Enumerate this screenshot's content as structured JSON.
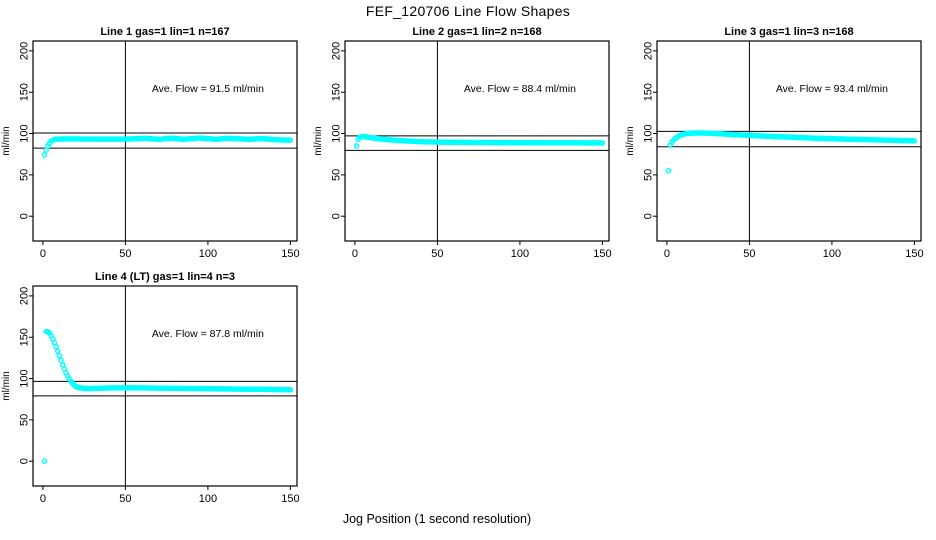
{
  "figure": {
    "title": "FEF_120706  Line Flow Shapes",
    "xlabel": "Jog Position (1 second resolution)"
  },
  "colors": {
    "points": "#00ffff",
    "axis": "#000000",
    "background": "#ffffff"
  },
  "chart_data": [
    {
      "type": "scatter",
      "title": "Line 1 gas=1 lin=1 n=167",
      "annotation": "Ave. Flow =  91.5  ml/min",
      "ave_flow_ml_min": 91.5,
      "n": 167,
      "ylabel": "ml/min",
      "xticks": [
        0,
        50,
        100,
        150
      ],
      "yticks": [
        0,
        50,
        100,
        150,
        200
      ],
      "xlim": [
        -6,
        154
      ],
      "ylim": [
        -30,
        212
      ],
      "vline": 50,
      "hlines": [
        100.7,
        82.4
      ],
      "annotation_xy": [
        100,
        150
      ],
      "grid": false,
      "points": {
        "x": [
          1,
          2,
          3,
          4,
          5,
          6,
          8,
          10,
          15,
          20,
          30,
          40,
          50,
          62,
          70,
          78,
          85,
          95,
          105,
          112,
          125,
          133,
          140,
          150
        ],
        "y": [
          74,
          80,
          85,
          88,
          91,
          92,
          93.2,
          93.4,
          93.5,
          93.5,
          93.3,
          93.2,
          93.2,
          94.3,
          93.0,
          94.4,
          93.1,
          94.6,
          93.0,
          94.3,
          93.0,
          94.0,
          92.6,
          92.0
        ]
      }
    },
    {
      "type": "scatter",
      "title": "Line 2 gas=1 lin=2 n=168",
      "annotation": "Ave. Flow =  88.4  ml/min",
      "ave_flow_ml_min": 88.4,
      "n": 168,
      "ylabel": "ml/min",
      "xticks": [
        0,
        50,
        100,
        150
      ],
      "yticks": [
        0,
        50,
        100,
        150,
        200
      ],
      "xlim": [
        -6,
        154
      ],
      "ylim": [
        -30,
        212
      ],
      "vline": 50,
      "hlines": [
        97.2,
        79.6
      ],
      "annotation_xy": [
        100,
        150
      ],
      "grid": false,
      "points": {
        "x": [
          1,
          2,
          3,
          4,
          6,
          8,
          10,
          12,
          15,
          18,
          22,
          26,
          30,
          35,
          40,
          50,
          60,
          75,
          90,
          110,
          130,
          150
        ],
        "y": [
          85,
          93,
          95.5,
          96.2,
          96.2,
          95.6,
          95.0,
          94.4,
          93.6,
          93.0,
          92.3,
          91.7,
          91.2,
          90.7,
          90.2,
          89.7,
          89.4,
          89.2,
          89.0,
          88.9,
          88.8,
          88.6
        ]
      }
    },
    {
      "type": "scatter",
      "title": "Line 3 gas=1 lin=3 n=168",
      "annotation": "Ave. Flow =  93.4  ml/min",
      "ave_flow_ml_min": 93.4,
      "n": 168,
      "ylabel": "ml/min",
      "xticks": [
        0,
        50,
        100,
        150
      ],
      "yticks": [
        0,
        50,
        100,
        150,
        200
      ],
      "xlim": [
        -6,
        154
      ],
      "ylim": [
        -30,
        212
      ],
      "vline": 50,
      "hlines": [
        102.7,
        84.1
      ],
      "annotation_xy": [
        100,
        150
      ],
      "grid": false,
      "points": {
        "x": [
          1,
          2,
          3,
          4,
          5,
          6,
          7,
          8,
          9,
          10,
          12,
          14,
          16,
          18,
          20,
          25,
          30,
          35,
          40,
          50,
          60,
          70,
          80,
          90,
          100,
          110,
          120,
          130,
          140,
          150
        ],
        "y": [
          55,
          86,
          89.5,
          92,
          94,
          95.5,
          96.8,
          97.8,
          98.6,
          99.2,
          100,
          100.4,
          100.6,
          100.7,
          100.7,
          100.4,
          100,
          99.4,
          98.8,
          97.8,
          96.8,
          96,
          95.2,
          94.4,
          93.8,
          93.2,
          92.7,
          92.2,
          91.7,
          91.2
        ]
      }
    },
    {
      "type": "scatter",
      "title": "Line 4 (LT) gas=1 lin=4 n=3",
      "annotation": "Ave. Flow =  87.8  ml/min",
      "ave_flow_ml_min": 87.8,
      "n": 3,
      "ylabel": "ml/min",
      "xticks": [
        0,
        50,
        100,
        150
      ],
      "yticks": [
        0,
        50,
        100,
        150,
        200
      ],
      "xlim": [
        -6,
        154
      ],
      "ylim": [
        -30,
        212
      ],
      "vline": 50,
      "hlines": [
        96.6,
        79.0
      ],
      "annotation_xy": [
        100,
        150
      ],
      "grid": false,
      "points": {
        "x": [
          1,
          2,
          3,
          4,
          5,
          6,
          7,
          8,
          9,
          10,
          11,
          12,
          13,
          14,
          15,
          16,
          17,
          18,
          19,
          20,
          22,
          24,
          26,
          30,
          35,
          40,
          50,
          60,
          70,
          80,
          90,
          100,
          110,
          120,
          130,
          140,
          150
        ],
        "y": [
          0,
          157,
          156.5,
          155,
          152,
          148,
          143.5,
          138.5,
          133,
          127.5,
          122,
          116.5,
          111.5,
          107,
          103,
          99.5,
          96.5,
          94,
          92,
          90.5,
          89,
          88.3,
          88,
          88,
          88.3,
          88.6,
          88.8,
          88.7,
          88.4,
          88.2,
          88,
          87.8,
          87.5,
          87.2,
          87,
          86.8,
          86.5
        ]
      }
    }
  ]
}
